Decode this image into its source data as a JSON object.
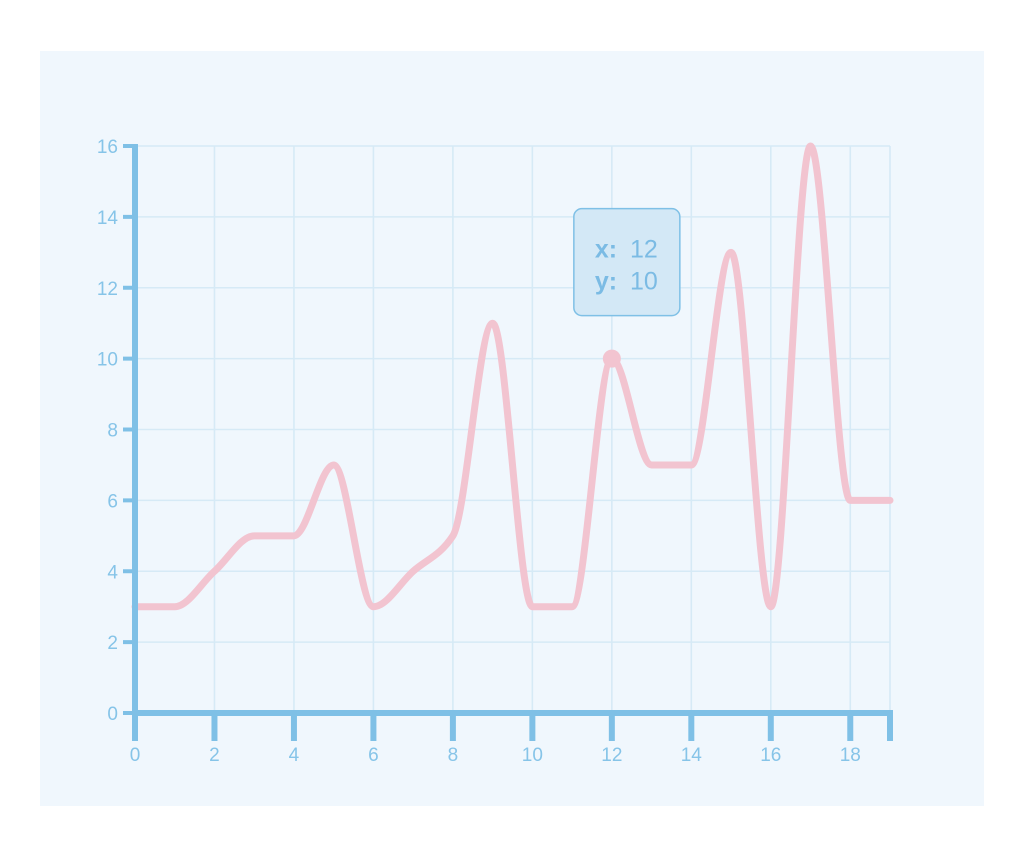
{
  "colors": {
    "background": "#ffffff",
    "panel": "#f0f7fd",
    "grid": "#d6eaf6",
    "axis": "#7fc0e6",
    "tick_label": "#86c4e8",
    "line": "#f2c4d0",
    "tooltip_bg": "#d3e8f6",
    "tooltip_border": "#7fc0e6",
    "tooltip_text": "#7bbbe4"
  },
  "chart_data": {
    "type": "line",
    "title": "",
    "xlabel": "",
    "ylabel": "",
    "xlim": [
      0,
      19
    ],
    "ylim": [
      0,
      16
    ],
    "x_ticks": [
      0,
      2,
      4,
      6,
      8,
      10,
      12,
      14,
      16,
      18
    ],
    "y_ticks": [
      0,
      2,
      4,
      6,
      8,
      10,
      12,
      14,
      16
    ],
    "x_tick_labels": [
      "0",
      "2",
      "4",
      "6",
      "8",
      "10",
      "12",
      "14",
      "16",
      "18"
    ],
    "y_tick_labels": [
      "0",
      "2",
      "4",
      "6",
      "8",
      "10",
      "12",
      "14",
      "16"
    ],
    "grid": true,
    "series": [
      {
        "x": [
          0,
          1,
          2,
          3,
          4,
          5,
          6,
          7,
          8,
          9,
          10,
          11,
          12,
          13,
          14,
          15,
          16,
          17,
          18,
          19
        ],
        "values": [
          3,
          3,
          4,
          5,
          5,
          7,
          3,
          4,
          5,
          11,
          3,
          3,
          10,
          7,
          7,
          13,
          3,
          16,
          6,
          6
        ]
      }
    ],
    "highlight": {
      "x": 12,
      "y": 10,
      "x_key": "x:",
      "y_key": "y:",
      "x_text": "12",
      "y_text": "10"
    }
  }
}
